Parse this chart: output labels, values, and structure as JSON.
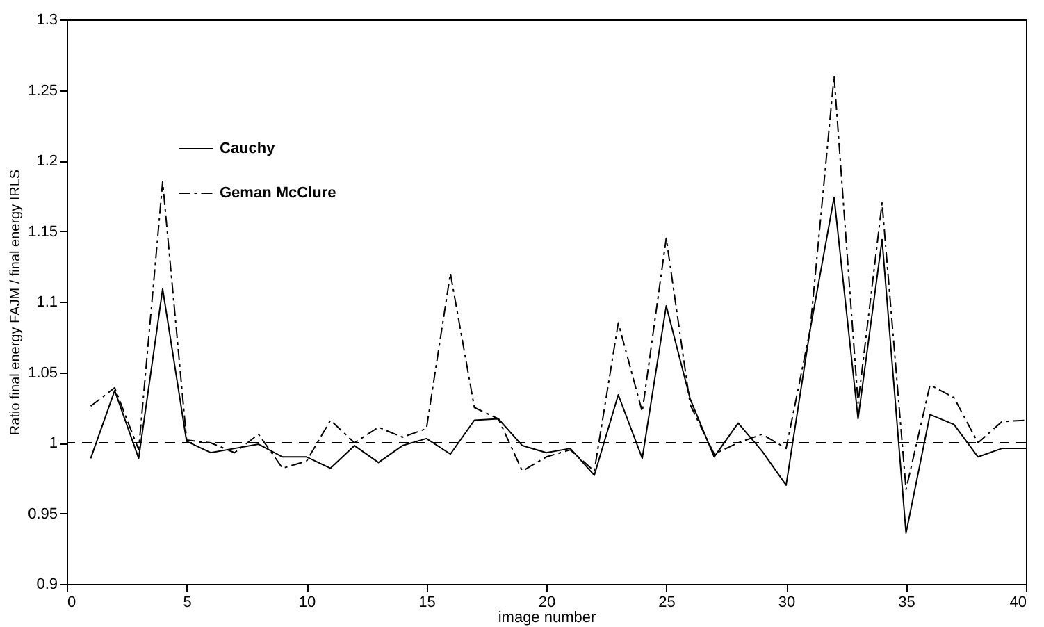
{
  "chart_data": {
    "type": "line",
    "xlabel": "image number",
    "ylabel": "Ratio final energy FAJM / final energy IRLS",
    "x": [
      1,
      2,
      3,
      4,
      5,
      6,
      7,
      8,
      9,
      10,
      11,
      12,
      13,
      14,
      15,
      16,
      17,
      18,
      19,
      20,
      21,
      22,
      23,
      24,
      25,
      26,
      27,
      28,
      29,
      30,
      31,
      32,
      33,
      34,
      35,
      36,
      37,
      38,
      39,
      40
    ],
    "series": [
      {
        "name": "Cauchy",
        "color": "#000000",
        "line_style": "solid",
        "values": [
          0.989,
          1.037,
          0.989,
          1.109,
          1.001,
          0.993,
          0.996,
          0.999,
          0.99,
          0.99,
          0.982,
          0.998,
          0.986,
          0.998,
          1.003,
          0.992,
          1.016,
          1.017,
          0.998,
          0.993,
          0.996,
          0.977,
          1.034,
          0.989,
          1.097,
          1.031,
          0.99,
          1.014,
          0.994,
          0.97,
          1.08,
          1.174,
          1.017,
          1.144,
          0.936,
          1.02,
          1.013,
          0.99,
          0.996,
          0.996
        ]
      },
      {
        "name": "Geman McClure",
        "color": "#000000",
        "line_style": "dashed",
        "values": [
          1.026,
          1.039,
          0.995,
          1.185,
          1.002,
          1.0,
          0.993,
          1.006,
          0.982,
          0.987,
          1.016,
          1.0,
          1.011,
          1.004,
          1.01,
          1.12,
          1.025,
          1.017,
          0.98,
          0.99,
          0.995,
          0.98,
          1.085,
          1.022,
          1.145,
          1.027,
          0.992,
          1.0,
          1.006,
          0.996,
          1.08,
          1.26,
          1.028,
          1.17,
          0.967,
          1.041,
          1.032,
          1.0,
          1.015,
          1.016
        ]
      }
    ],
    "xlim": [
      0,
      40
    ],
    "xticks": [
      0,
      5,
      10,
      15,
      20,
      25,
      30,
      35,
      40
    ],
    "ylim": [
      0.9,
      1.3
    ],
    "yticks": [
      0.9,
      0.95,
      1,
      1.05,
      1.1,
      1.15,
      1.2,
      1.25,
      1.3
    ],
    "ref_lines": [
      {
        "axis": "y",
        "value": 1,
        "line_style": "dashed",
        "color": "#000000"
      }
    ],
    "legend": "top left",
    "grid": false
  }
}
